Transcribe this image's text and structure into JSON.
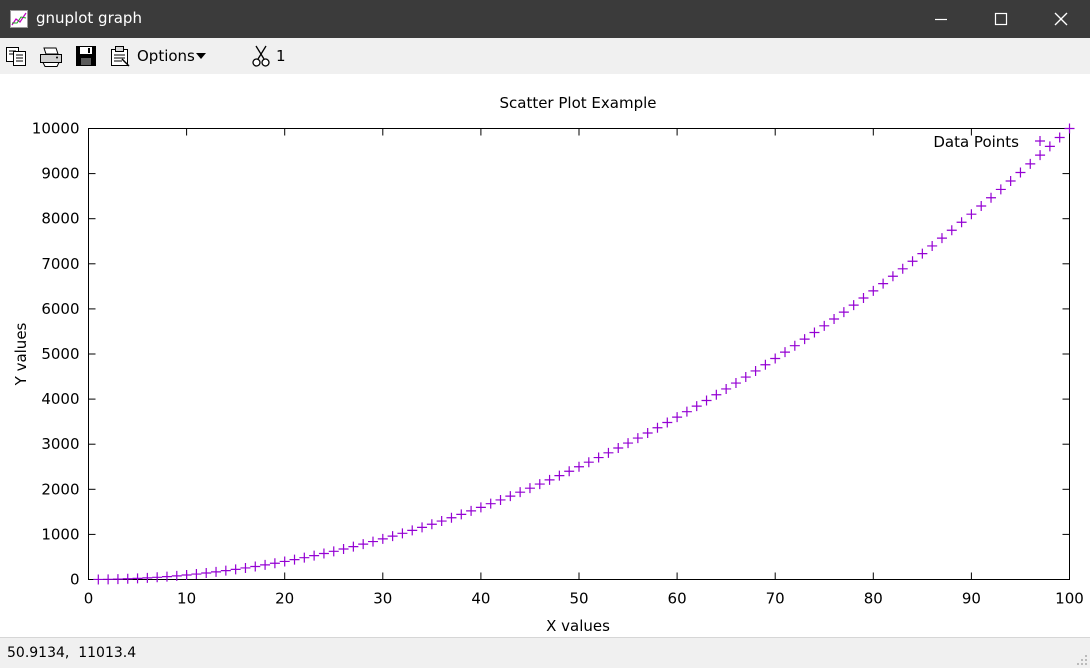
{
  "window": {
    "title": "gnuplot graph"
  },
  "toolbar": {
    "options_label": "Options",
    "scissors_label": "1",
    "icons": [
      "copy-icon",
      "print-icon",
      "save-icon",
      "options-icon",
      "scissors-icon"
    ]
  },
  "status": {
    "coords": "50.9134,  11013.4"
  },
  "colors": {
    "series": "#9400d3",
    "titlebar": "#3b3b3b",
    "toolbar": "#f0f0f0"
  },
  "chart_data": {
    "type": "scatter",
    "title": "Scatter Plot Example",
    "xlabel": "X values",
    "ylabel": "Y values",
    "xlim": [
      0,
      100
    ],
    "ylim": [
      0,
      10000
    ],
    "xticks": [
      0,
      10,
      20,
      30,
      40,
      50,
      60,
      70,
      80,
      90,
      100
    ],
    "yticks": [
      0,
      1000,
      2000,
      3000,
      4000,
      5000,
      6000,
      7000,
      8000,
      9000,
      10000
    ],
    "grid": false,
    "legend_position": "top-right",
    "marker": "plus",
    "series": [
      {
        "name": "Data Points",
        "color": "#9400d3",
        "x": [
          1,
          2,
          3,
          4,
          5,
          6,
          7,
          8,
          9,
          10,
          11,
          12,
          13,
          14,
          15,
          16,
          17,
          18,
          19,
          20,
          21,
          22,
          23,
          24,
          25,
          26,
          27,
          28,
          29,
          30,
          31,
          32,
          33,
          34,
          35,
          36,
          37,
          38,
          39,
          40,
          41,
          42,
          43,
          44,
          45,
          46,
          47,
          48,
          49,
          50,
          51,
          52,
          53,
          54,
          55,
          56,
          57,
          58,
          59,
          60,
          61,
          62,
          63,
          64,
          65,
          66,
          67,
          68,
          69,
          70,
          71,
          72,
          73,
          74,
          75,
          76,
          77,
          78,
          79,
          80,
          81,
          82,
          83,
          84,
          85,
          86,
          87,
          88,
          89,
          90,
          91,
          92,
          93,
          94,
          95,
          96,
          97,
          98,
          99,
          100
        ],
        "y": [
          1,
          4,
          9,
          16,
          25,
          36,
          49,
          64,
          81,
          100,
          121,
          144,
          169,
          196,
          225,
          256,
          289,
          324,
          361,
          400,
          441,
          484,
          529,
          576,
          625,
          676,
          729,
          784,
          841,
          900,
          961,
          1024,
          1089,
          1156,
          1225,
          1296,
          1369,
          1444,
          1521,
          1600,
          1681,
          1764,
          1849,
          1936,
          2025,
          2116,
          2209,
          2304,
          2401,
          2500,
          2601,
          2704,
          2809,
          2916,
          3025,
          3136,
          3249,
          3364,
          3481,
          3600,
          3721,
          3844,
          3969,
          4096,
          4225,
          4356,
          4489,
          4624,
          4761,
          4900,
          5041,
          5184,
          5329,
          5476,
          5625,
          5776,
          5929,
          6084,
          6241,
          6400,
          6561,
          6724,
          6889,
          7056,
          7225,
          7396,
          7569,
          7744,
          7921,
          8100,
          8281,
          8464,
          8649,
          8836,
          9025,
          9216,
          9409,
          9604,
          9801,
          10000
        ]
      }
    ]
  }
}
